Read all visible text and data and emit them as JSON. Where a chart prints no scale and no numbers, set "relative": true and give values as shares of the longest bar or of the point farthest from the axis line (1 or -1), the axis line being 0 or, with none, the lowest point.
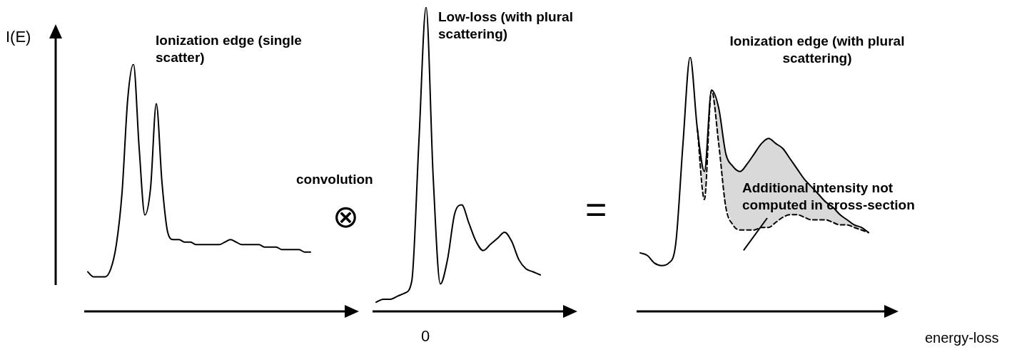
{
  "chart_data": [
    {
      "type": "line",
      "relative": true,
      "title": "Ionization edge (single scatter)",
      "ylabel": "I(E)",
      "marker": "none",
      "categories": [
        null,
        null,
        null,
        null,
        null,
        null,
        null,
        null,
        null,
        null,
        null,
        null,
        null,
        null,
        null,
        null,
        null,
        null,
        null,
        null,
        null,
        null,
        null,
        null,
        null,
        null,
        null,
        null,
        null,
        null,
        null,
        null,
        null,
        null,
        null,
        null,
        null,
        null,
        null,
        null,
        null,
        null,
        null,
        null,
        null,
        null,
        null
      ],
      "series": [
        {
          "color": "#000000",
          "values": [
            0.16,
            0.14,
            0.14,
            0.14,
            0.17,
            0.27,
            0.48,
            0.86,
            1,
            0.66,
            0.39,
            0.5,
            0.84,
            0.52,
            0.32,
            0.29,
            0.29,
            0.28,
            0.28,
            0.27,
            0.27,
            0.27,
            0.27,
            0.27,
            0.28,
            0.29,
            0.28,
            0.27,
            0.27,
            0.27,
            0.27,
            0.26,
            0.26,
            0.26,
            0.25,
            0.25,
            0.25,
            0.25,
            0.24,
            0.24,
            null,
            null,
            null,
            null,
            null,
            null,
            null
          ]
        }
      ]
    },
    {
      "type": "line",
      "relative": true,
      "title": "Low-loss (with plural scattering)",
      "marker": "none",
      "annotations": [
        "convolution",
        "⊗",
        "0"
      ],
      "categories": [
        null,
        null,
        null,
        null,
        null,
        null,
        null,
        null,
        null,
        null,
        null,
        null,
        null,
        null,
        null,
        null,
        null,
        null,
        null,
        null,
        null,
        null,
        null,
        null,
        null,
        null,
        null,
        null
      ],
      "series": [
        {
          "color": "#000000",
          "values": [
            0.03,
            0.04,
            0.04,
            0.05,
            0.06,
            0.1,
            0.56,
            1,
            0.44,
            0.09,
            0.17,
            0.32,
            0.35,
            0.29,
            0.23,
            0.2,
            0.22,
            0.24,
            0.26,
            0.23,
            0.17,
            0.14,
            0.13,
            0.12,
            null,
            null,
            null,
            null
          ]
        }
      ]
    },
    {
      "type": "line",
      "relative": true,
      "title": "Ionization edge (with plural scattering)",
      "xlabel": "energy-loss",
      "marker": "none",
      "annotations": [
        "=",
        "Additional intensity not computed in cross-section"
      ],
      "categories": [
        null,
        null,
        null,
        null,
        null,
        null,
        null,
        null,
        null,
        null,
        null,
        null,
        null,
        null,
        null,
        null,
        null,
        null,
        null,
        null,
        null,
        null,
        null,
        null,
        null,
        null,
        null,
        null,
        null,
        null,
        null,
        null,
        null,
        null,
        null,
        null
      ],
      "series": [
        {
          "color": "#000000",
          "values": [
            0.23,
            0.22,
            0.19,
            0.18,
            0.19,
            0.27,
            0.66,
            1,
            0.72,
            0.55,
            0.87,
            0.8,
            0.62,
            0.57,
            0.55,
            0.58,
            0.62,
            0.66,
            0.68,
            0.66,
            0.64,
            0.6,
            0.56,
            0.52,
            0.49,
            0.46,
            0.43,
            0.41,
            0.38,
            0.36,
            0.34,
            0.33,
            0.31,
            null,
            null,
            null
          ],
          "upper": [
            null,
            null,
            null,
            null,
            null,
            null,
            null,
            null,
            0.72,
            0.55,
            0.87,
            0.8,
            0.62,
            0.57,
            0.55,
            0.58,
            0.62,
            0.66,
            0.68,
            0.66,
            0.64,
            0.6,
            0.56,
            0.52,
            0.49,
            0.46,
            0.43,
            0.41,
            0.38,
            0.36,
            0.34,
            0.33,
            0.31,
            null,
            null,
            null
          ],
          "lower": [
            null,
            null,
            null,
            null,
            null,
            null,
            null,
            null,
            0.72,
            0.44,
            0.87,
            0.66,
            0.41,
            0.34,
            0.32,
            0.32,
            0.32,
            0.33,
            0.33,
            0.35,
            0.37,
            0.38,
            0.38,
            0.37,
            0.36,
            0.36,
            0.36,
            0.35,
            0.34,
            0.34,
            0.33,
            0.32,
            0.31,
            null,
            null,
            null
          ]
        },
        {
          "color": "#000000",
          "line_style": "dashed",
          "values": [
            null,
            null,
            null,
            null,
            null,
            null,
            null,
            null,
            0.72,
            0.44,
            0.87,
            0.66,
            0.41,
            0.34,
            0.32,
            0.32,
            0.32,
            0.33,
            0.33,
            0.35,
            0.37,
            0.38,
            0.38,
            0.37,
            0.36,
            0.36,
            0.36,
            0.35,
            0.34,
            0.34,
            0.33,
            0.32,
            0.31,
            null,
            null,
            null
          ]
        }
      ]
    }
  ]
}
